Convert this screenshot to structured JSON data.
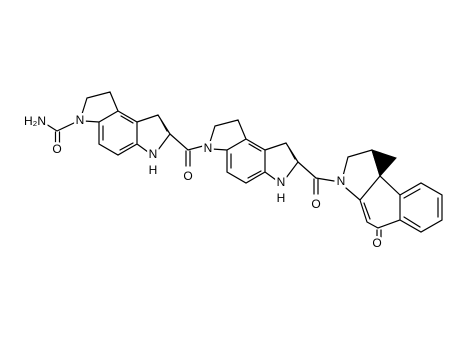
{
  "atoms": [
    "H₂N",
    "O",
    "N",
    "N",
    "H",
    "O",
    "N",
    "N",
    "H",
    "O",
    "N",
    "O"
  ]
}
